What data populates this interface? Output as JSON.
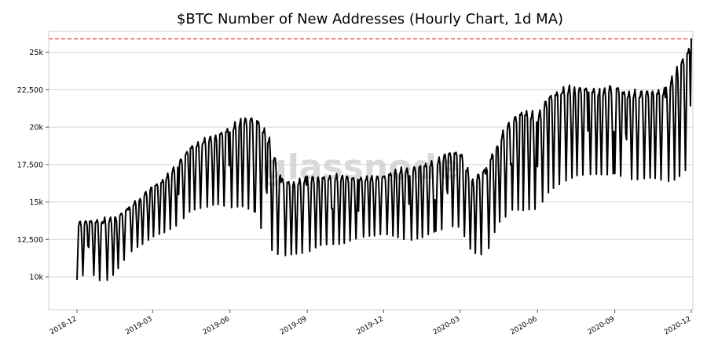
{
  "chart_data": {
    "type": "line",
    "title": "$BTC Number of New Addresses (Hourly Chart, 1d MA)",
    "watermark": "glassnode",
    "xlabel": "",
    "ylabel": "",
    "xlim": [
      "2018-12-01",
      "2020-12-01"
    ],
    "ylim": [
      7800,
      26400
    ],
    "grid": "horizontal",
    "reference_line": {
      "y": 25900,
      "style": "dashed",
      "color": "#e8474f"
    },
    "y_ticks": [
      {
        "value": 10000,
        "label": "10k"
      },
      {
        "value": 12500,
        "label": "12,500"
      },
      {
        "value": 15000,
        "label": "15k"
      },
      {
        "value": 17500,
        "label": "17,500"
      },
      {
        "value": 20000,
        "label": "20k"
      },
      {
        "value": 22500,
        "label": "22,500"
      },
      {
        "value": 25000,
        "label": "25k"
      }
    ],
    "x_ticks": [
      {
        "date": "2018-12-01",
        "label": "2018-12"
      },
      {
        "date": "2019-03-01",
        "label": "2019-03"
      },
      {
        "date": "2019-06-01",
        "label": "2019-06"
      },
      {
        "date": "2019-09-01",
        "label": "2019-09"
      },
      {
        "date": "2019-12-01",
        "label": "2019-12"
      },
      {
        "date": "2020-03-01",
        "label": "2020-03"
      },
      {
        "date": "2020-06-01",
        "label": "2020-06"
      },
      {
        "date": "2020-09-01",
        "label": "2020-09"
      },
      {
        "date": "2020-12-01",
        "label": "2020-12"
      }
    ],
    "series": [
      {
        "color": "#000000",
        "x": [
          "2018-12-01",
          "2018-12-15",
          "2019-01-01",
          "2019-01-15",
          "2019-02-01",
          "2019-02-15",
          "2019-03-01",
          "2019-03-15",
          "2019-04-01",
          "2019-04-15",
          "2019-05-01",
          "2019-05-15",
          "2019-06-01",
          "2019-06-15",
          "2019-07-01",
          "2019-07-15",
          "2019-08-01",
          "2019-08-15",
          "2019-09-01",
          "2019-09-15",
          "2019-10-01",
          "2019-10-15",
          "2019-11-01",
          "2019-11-15",
          "2019-12-01",
          "2019-12-15",
          "2020-01-01",
          "2020-01-15",
          "2020-02-01",
          "2020-02-15",
          "2020-03-01",
          "2020-03-15",
          "2020-04-01",
          "2020-04-15",
          "2020-05-01",
          "2020-05-15",
          "2020-06-01",
          "2020-06-15",
          "2020-07-01",
          "2020-07-15",
          "2020-08-01",
          "2020-08-15",
          "2020-09-01",
          "2020-09-15",
          "2020-10-01",
          "2020-10-15",
          "2020-11-01",
          "2020-11-15",
          "2020-12-01"
        ],
        "low": [
          9800,
          10300,
          9500,
          10200,
          11500,
          12100,
          12600,
          12900,
          13500,
          14300,
          14600,
          14800,
          14500,
          14700,
          14200,
          12000,
          11300,
          11400,
          11600,
          12000,
          12100,
          12200,
          12500,
          12700,
          12800,
          12600,
          12400,
          12500,
          13000,
          13300,
          13200,
          11600,
          11300,
          13500,
          14400,
          14300,
          14500,
          15600,
          16200,
          16700,
          16700,
          16800,
          16800,
          16400,
          16500,
          16500,
          16300,
          16500,
          17300
        ],
        "high": [
          13800,
          13900,
          14000,
          14100,
          14800,
          15500,
          16200,
          16700,
          17800,
          18900,
          19300,
          19700,
          20200,
          20700,
          21000,
          19900,
          16800,
          16500,
          16800,
          16900,
          16900,
          16900,
          16800,
          16800,
          16900,
          17300,
          17400,
          17700,
          17900,
          18500,
          18600,
          16600,
          17600,
          19300,
          20800,
          21400,
          21000,
          22400,
          22800,
          22900,
          22900,
          22600,
          23100,
          22500,
          22600,
          22700,
          22700,
          24400,
          25900
        ]
      }
    ]
  }
}
